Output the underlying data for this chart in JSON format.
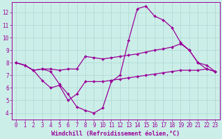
{
  "background_color": "#cceee8",
  "grid_color": "#aad8d0",
  "line_color": "#990099",
  "markersize": 2.0,
  "linewidth": 0.9,
  "xlabel": "Windchill (Refroidissement éolien,°C)",
  "xlabel_fontsize": 6.0,
  "xlim": [
    -0.5,
    23.5
  ],
  "ylim": [
    3.5,
    12.8
  ],
  "xticks": [
    0,
    1,
    2,
    3,
    4,
    5,
    6,
    7,
    8,
    9,
    10,
    11,
    12,
    13,
    14,
    15,
    16,
    17,
    18,
    19,
    20,
    21,
    22,
    23
  ],
  "yticks": [
    4,
    5,
    6,
    7,
    8,
    9,
    10,
    11,
    12
  ],
  "tick_fontsize": 5.5,
  "series": [
    {
      "x": [
        0,
        1,
        2,
        3,
        4,
        5,
        6,
        7,
        8,
        9,
        10,
        11,
        12,
        13,
        14,
        15,
        16,
        17,
        18,
        19,
        20,
        21,
        22,
        23
      ],
      "y": [
        8.0,
        7.8,
        7.4,
        7.5,
        7.5,
        7.4,
        7.5,
        7.5,
        8.5,
        8.4,
        8.3,
        8.4,
        8.5,
        8.6,
        8.7,
        8.85,
        9.0,
        9.1,
        9.25,
        9.5,
        9.0,
        8.0,
        7.5,
        7.3
      ]
    },
    {
      "x": [
        0,
        1,
        2,
        3,
        4,
        5,
        6,
        7,
        8,
        9,
        10,
        11,
        12,
        13,
        14,
        15,
        16,
        17,
        18,
        19,
        20,
        21,
        22,
        23
      ],
      "y": [
        8.0,
        7.8,
        7.4,
        7.5,
        7.3,
        6.3,
        5.5,
        4.5,
        4.2,
        4.0,
        4.4,
        6.5,
        7.0,
        9.8,
        12.3,
        12.5,
        11.7,
        11.4,
        10.8,
        9.6,
        9.0,
        8.0,
        7.8,
        7.3
      ]
    },
    {
      "x": [
        0,
        1,
        2,
        3,
        4,
        5,
        6,
        7,
        8,
        9,
        10,
        11,
        12,
        13,
        14,
        15,
        16,
        17,
        18,
        19,
        20,
        21,
        22,
        23
      ],
      "y": [
        8.0,
        7.8,
        7.4,
        6.6,
        6.0,
        6.2,
        5.0,
        5.5,
        6.5,
        6.5,
        6.5,
        6.6,
        6.7,
        6.8,
        6.9,
        7.0,
        7.1,
        7.2,
        7.3,
        7.4,
        7.4,
        7.4,
        7.5,
        7.3
      ]
    }
  ]
}
